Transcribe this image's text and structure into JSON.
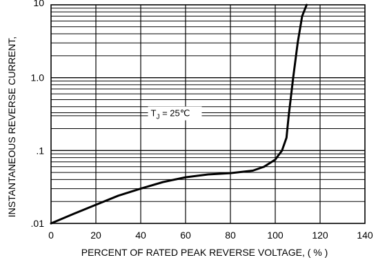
{
  "chart_data": {
    "type": "line",
    "title": "",
    "xlabel": "PERCENT OF RATED PEAK REVERSE VOLTAGE, ( % )",
    "ylabel": "INSTANTANEOUS REVERSE CURRENT,",
    "xlim": [
      0,
      140
    ],
    "ylim": [
      0.01,
      10
    ],
    "y_scale": "log",
    "grid": true,
    "x_ticks": [
      "0",
      "20",
      "40",
      "60",
      "80",
      "100",
      "120",
      "140"
    ],
    "y_ticks": [
      ".01",
      ".1",
      "1.0",
      "10"
    ],
    "annotation": {
      "text_main": "T",
      "text_sub": "J",
      "text_rest": " = 25℃"
    },
    "series": [
      {
        "x": [
          0,
          10,
          20,
          30,
          40,
          50,
          60,
          70,
          80,
          90,
          95,
          100,
          103,
          105,
          106,
          108,
          110,
          112,
          114
        ],
        "y": [
          0.01,
          0.0135,
          0.018,
          0.024,
          0.03,
          0.037,
          0.043,
          0.047,
          0.049,
          0.053,
          0.06,
          0.075,
          0.1,
          0.15,
          0.3,
          1.0,
          3.0,
          7.0,
          10.0
        ]
      }
    ]
  }
}
